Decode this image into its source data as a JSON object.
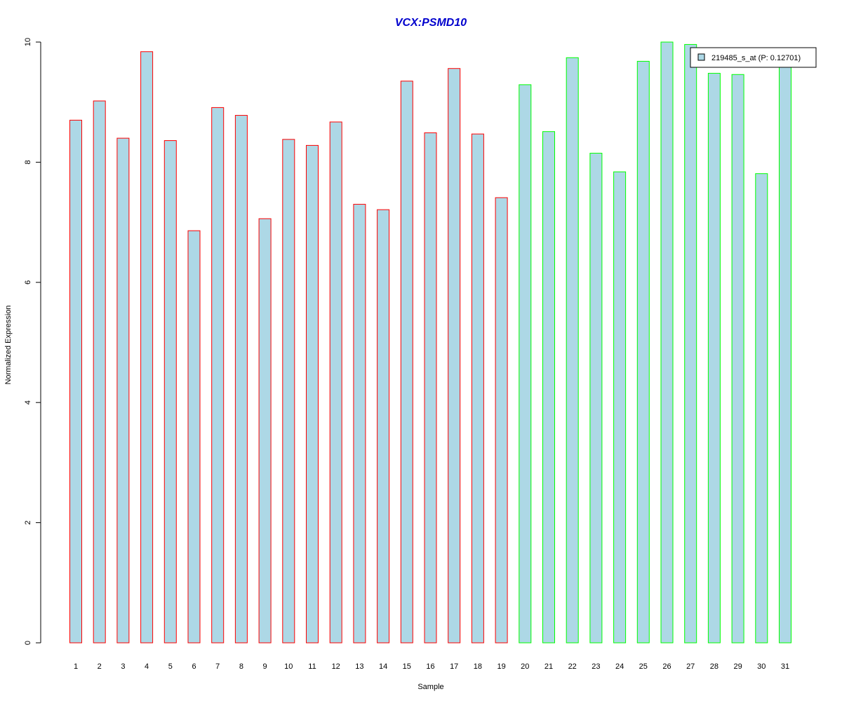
{
  "chart_data": {
    "type": "bar",
    "title": "VCX:PSMD10",
    "xlabel": "Sample",
    "ylabel": "Normalized Expression",
    "ylim": [
      0,
      10
    ],
    "yticks": [
      "0",
      "2",
      "4",
      "6",
      "8",
      "10"
    ],
    "categories": [
      "1",
      "2",
      "3",
      "4",
      "5",
      "6",
      "7",
      "8",
      "9",
      "10",
      "11",
      "12",
      "13",
      "14",
      "15",
      "16",
      "17",
      "18",
      "19",
      "20",
      "21",
      "22",
      "23",
      "24",
      "25",
      "26",
      "27",
      "28",
      "29",
      "30",
      "31"
    ],
    "series": [
      {
        "name": "219485_s_at (P: 0.12701)",
        "values": [
          8.7,
          9.02,
          8.4,
          9.84,
          8.36,
          6.86,
          8.91,
          8.78,
          7.06,
          8.38,
          8.28,
          8.67,
          7.3,
          7.21,
          9.35,
          8.49,
          9.56,
          8.47,
          7.41,
          9.29,
          8.51,
          9.74,
          8.15,
          7.84,
          9.68,
          10.0,
          9.96,
          9.48,
          9.46,
          7.81,
          9.76
        ]
      }
    ],
    "group_of_bar": [
      1,
      1,
      1,
      1,
      1,
      1,
      1,
      1,
      1,
      1,
      1,
      1,
      1,
      1,
      1,
      1,
      1,
      1,
      1,
      2,
      2,
      2,
      2,
      2,
      2,
      2,
      2,
      2,
      2,
      2,
      2
    ],
    "colors": {
      "bar_fill": "#add8e6",
      "group1_border": "#ff0000",
      "group2_border": "#00ff00",
      "title": "#0000cd",
      "axis": "#000000"
    },
    "legend": {
      "label": "219485_s_at (P: 0.12701)",
      "placement": "top-right"
    },
    "grid": false
  }
}
